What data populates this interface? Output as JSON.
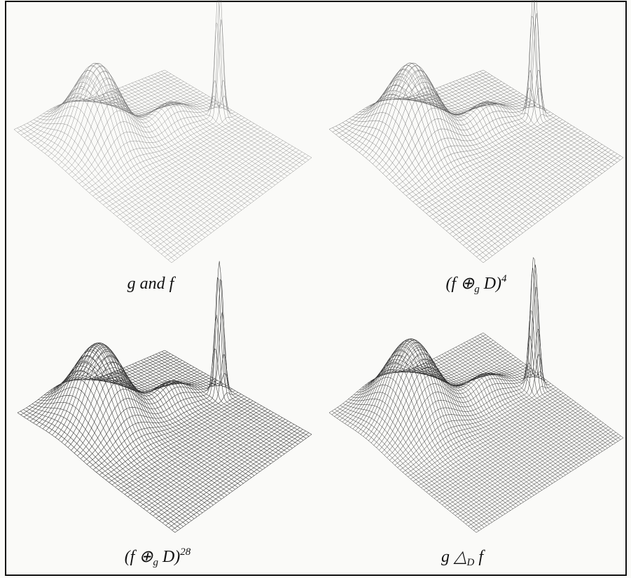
{
  "figures": [
    {
      "caption": {
        "text": "g and f"
      }
    },
    {
      "caption": {
        "main": "(f ⊕",
        "sub": "g",
        "after": " D)",
        "sup": "4"
      }
    },
    {
      "caption": {
        "main": "(f ⊕",
        "sub": "g",
        "after": " D)",
        "sup": "28"
      }
    },
    {
      "caption": {
        "main": "g  △",
        "sub": "D",
        "after": " f"
      }
    }
  ]
}
